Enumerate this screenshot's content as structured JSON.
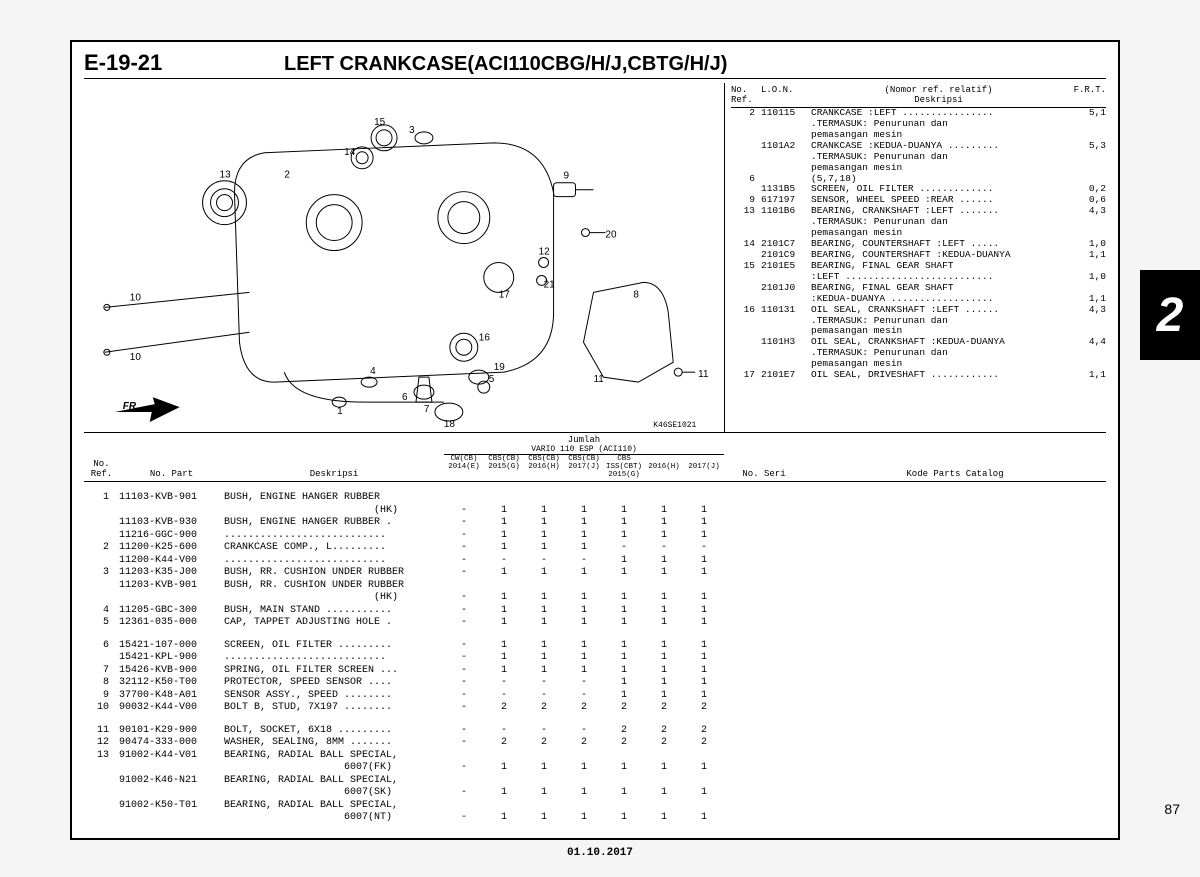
{
  "section_code": "E-19-21",
  "section_title": "LEFT CRANKCASE(ACI110CBG/H/J,CBTG/H/J)",
  "chapter_tab": "2",
  "page_number": "87",
  "footer_date": "01.10.2017",
  "diagram_ref": "K46SE1021",
  "fr_label": "FR.",
  "callouts": [
    "1",
    "2",
    "3",
    "4",
    "5",
    "6",
    "7",
    "8",
    "9",
    "10",
    "11",
    "12",
    "13",
    "14",
    "15",
    "16",
    "17",
    "18",
    "19",
    "20",
    "21"
  ],
  "ref_header": {
    "no": "No.\nRef.",
    "lon": "L.O.N.",
    "nomor": "(Nomor ref. relatif)",
    "desc": "Deskripsi",
    "frt": "F.R.T."
  },
  "ref_rows": [
    {
      "no": "2",
      "lon": "110115",
      "desc": "CRANKCASE :LEFT ................",
      "frt": "5,1"
    },
    {
      "no": "",
      "lon": "",
      "desc": ".TERMASUK: Penurunan dan",
      "frt": ""
    },
    {
      "no": "",
      "lon": "",
      "desc": "pemasangan mesin",
      "frt": ""
    },
    {
      "no": "",
      "lon": "1101A2",
      "desc": "CRANKCASE :KEDUA-DUANYA .........",
      "frt": "5,3"
    },
    {
      "no": "",
      "lon": "",
      "desc": ".TERMASUK: Penurunan dan",
      "frt": ""
    },
    {
      "no": "",
      "lon": "",
      "desc": "pemasangan mesin",
      "frt": ""
    },
    {
      "no": "6",
      "lon": "",
      "desc": "(5,7,18)",
      "frt": ""
    },
    {
      "no": "",
      "lon": "1131B5",
      "desc": "SCREEN, OIL FILTER .............",
      "frt": "0,2"
    },
    {
      "no": "9",
      "lon": "617197",
      "desc": "SENSOR, WHEEL SPEED :REAR ......",
      "frt": "0,6"
    },
    {
      "no": "13",
      "lon": "1101B6",
      "desc": "BEARING, CRANKSHAFT :LEFT .......",
      "frt": "4,3"
    },
    {
      "no": "",
      "lon": "",
      "desc": ".TERMASUK: Penurunan dan",
      "frt": ""
    },
    {
      "no": "",
      "lon": "",
      "desc": "pemasangan mesin",
      "frt": ""
    },
    {
      "no": "14",
      "lon": "2101C7",
      "desc": "BEARING, COUNTERSHAFT :LEFT .....",
      "frt": "1,0"
    },
    {
      "no": "",
      "lon": "2101C9",
      "desc": "BEARING, COUNTERSHAFT :KEDUA-DUANYA",
      "frt": "1,1"
    },
    {
      "no": "15",
      "lon": "2101E5",
      "desc": "BEARING, FINAL GEAR SHAFT",
      "frt": ""
    },
    {
      "no": "",
      "lon": "",
      "desc": ":LEFT ..........................",
      "frt": "1,0"
    },
    {
      "no": "",
      "lon": "2101J0",
      "desc": "BEARING, FINAL GEAR SHAFT",
      "frt": ""
    },
    {
      "no": "",
      "lon": "",
      "desc": ":KEDUA-DUANYA ..................",
      "frt": "1,1"
    },
    {
      "no": "16",
      "lon": "110131",
      "desc": "OIL SEAL, CRANKSHAFT :LEFT ......",
      "frt": "4,3"
    },
    {
      "no": "",
      "lon": "",
      "desc": ".TERMASUK: Penurunan dan",
      "frt": ""
    },
    {
      "no": "",
      "lon": "",
      "desc": "pemasangan mesin",
      "frt": ""
    },
    {
      "no": "",
      "lon": "1101H3",
      "desc": "OIL SEAL, CRANKSHAFT :KEDUA-DUANYA",
      "frt": "4,4"
    },
    {
      "no": "",
      "lon": "",
      "desc": ".TERMASUK: Penurunan dan",
      "frt": ""
    },
    {
      "no": "",
      "lon": "",
      "desc": "pemasangan mesin",
      "frt": ""
    },
    {
      "no": "17",
      "lon": "2101E7",
      "desc": "OIL SEAL, DRIVESHAFT ............",
      "frt": "1,1"
    }
  ],
  "parts_header": {
    "no": "No.\nRef.",
    "part": "No. Part",
    "desc": "Deskripsi",
    "jumlah": "Jumlah",
    "model": "VARIO 110 ESP (ACI110)",
    "seri": "No. Seri",
    "kode": "Kode Parts Catalog",
    "cols": [
      "CW(CB)\n2014(E)",
      "CBS(CB)\n2015(G)",
      "CBS(CB)\n2016(H)",
      "CBS(CB)\n2017(J)",
      "CBS ISS(CBT)\n2015(G)",
      "\n2016(H)",
      "\n2017(J)"
    ]
  },
  "parts": [
    {
      "no": "1",
      "pn": "11103-KVB-901",
      "d": "BUSH, ENGINE HANGER RUBBER",
      "q": [
        "",
        "",
        "",
        "",
        "",
        "",
        ""
      ]
    },
    {
      "no": "",
      "pn": "",
      "d": "                         (HK)",
      "q": [
        "-",
        "1",
        "1",
        "1",
        "1",
        "1",
        "1"
      ]
    },
    {
      "no": "",
      "pn": "11103-KVB-930",
      "d": "BUSH, ENGINE HANGER RUBBER .",
      "q": [
        "-",
        "1",
        "1",
        "1",
        "1",
        "1",
        "1"
      ]
    },
    {
      "no": "",
      "pn": "11216-GGC-900",
      "d": "...........................",
      "q": [
        "-",
        "1",
        "1",
        "1",
        "1",
        "1",
        "1"
      ]
    },
    {
      "no": "2",
      "pn": "11200-K25-600",
      "d": "CRANKCASE COMP., L.........",
      "q": [
        "-",
        "1",
        "1",
        "1",
        "-",
        "-",
        "-"
      ]
    },
    {
      "no": "",
      "pn": "11200-K44-V00",
      "d": "...........................",
      "q": [
        "-",
        "-",
        "-",
        "-",
        "1",
        "1",
        "1"
      ]
    },
    {
      "no": "3",
      "pn": "11203-K35-J00",
      "d": "BUSH, RR. CUSHION UNDER RUBBER",
      "q": [
        "-",
        "1",
        "1",
        "1",
        "1",
        "1",
        "1"
      ]
    },
    {
      "no": "",
      "pn": "11203-KVB-901",
      "d": "BUSH, RR. CUSHION UNDER RUBBER",
      "q": [
        "",
        "",
        "",
        "",
        "",
        "",
        ""
      ]
    },
    {
      "no": "",
      "pn": "",
      "d": "                         (HK)",
      "q": [
        "-",
        "1",
        "1",
        "1",
        "1",
        "1",
        "1"
      ]
    },
    {
      "no": "4",
      "pn": "11205-GBC-300",
      "d": "BUSH, MAIN STAND ...........",
      "q": [
        "-",
        "1",
        "1",
        "1",
        "1",
        "1",
        "1"
      ]
    },
    {
      "no": "5",
      "pn": "12361-035-000",
      "d": "CAP, TAPPET ADJUSTING HOLE .",
      "q": [
        "-",
        "1",
        "1",
        "1",
        "1",
        "1",
        "1"
      ]
    },
    {
      "spacer": true
    },
    {
      "no": "6",
      "pn": "15421-107-000",
      "d": "SCREEN, OIL FILTER .........",
      "q": [
        "-",
        "1",
        "1",
        "1",
        "1",
        "1",
        "1"
      ]
    },
    {
      "no": "",
      "pn": "15421-KPL-900",
      "d": "...........................",
      "q": [
        "-",
        "1",
        "1",
        "1",
        "1",
        "1",
        "1"
      ]
    },
    {
      "no": "7",
      "pn": "15426-KVB-900",
      "d": "SPRING, OIL FILTER SCREEN ...",
      "q": [
        "-",
        "1",
        "1",
        "1",
        "1",
        "1",
        "1"
      ]
    },
    {
      "no": "8",
      "pn": "32112-K50-T00",
      "d": "PROTECTOR, SPEED SENSOR ....",
      "q": [
        "-",
        "-",
        "-",
        "-",
        "1",
        "1",
        "1"
      ]
    },
    {
      "no": "9",
      "pn": "37700-K48-A01",
      "d": "SENSOR ASSY., SPEED ........",
      "q": [
        "-",
        "-",
        "-",
        "-",
        "1",
        "1",
        "1"
      ]
    },
    {
      "no": "10",
      "pn": "90032-K44-V00",
      "d": "BOLT B, STUD, 7X197 ........",
      "q": [
        "-",
        "2",
        "2",
        "2",
        "2",
        "2",
        "2"
      ]
    },
    {
      "spacer": true
    },
    {
      "no": "11",
      "pn": "90101-K29-900",
      "d": "BOLT, SOCKET, 6X18 .........",
      "q": [
        "-",
        "-",
        "-",
        "-",
        "2",
        "2",
        "2"
      ]
    },
    {
      "no": "12",
      "pn": "90474-333-000",
      "d": "WASHER, SEALING, 8MM .......",
      "q": [
        "-",
        "2",
        "2",
        "2",
        "2",
        "2",
        "2"
      ]
    },
    {
      "no": "13",
      "pn": "91002-K44-V01",
      "d": "BEARING, RADIAL BALL SPECIAL,",
      "q": [
        "",
        "",
        "",
        "",
        "",
        "",
        ""
      ]
    },
    {
      "no": "",
      "pn": "",
      "d": "                    6007(FK)",
      "q": [
        "-",
        "1",
        "1",
        "1",
        "1",
        "1",
        "1"
      ]
    },
    {
      "no": "",
      "pn": "91002-K46-N21",
      "d": "BEARING, RADIAL BALL SPECIAL,",
      "q": [
        "",
        "",
        "",
        "",
        "",
        "",
        ""
      ]
    },
    {
      "no": "",
      "pn": "",
      "d": "                    6007(SK)",
      "q": [
        "-",
        "1",
        "1",
        "1",
        "1",
        "1",
        "1"
      ]
    },
    {
      "no": "",
      "pn": "91002-K50-T01",
      "d": "BEARING, RADIAL BALL SPECIAL,",
      "q": [
        "",
        "",
        "",
        "",
        "",
        "",
        ""
      ]
    },
    {
      "no": "",
      "pn": "",
      "d": "                    6007(NT)",
      "q": [
        "-",
        "1",
        "1",
        "1",
        "1",
        "1",
        "1"
      ]
    }
  ]
}
